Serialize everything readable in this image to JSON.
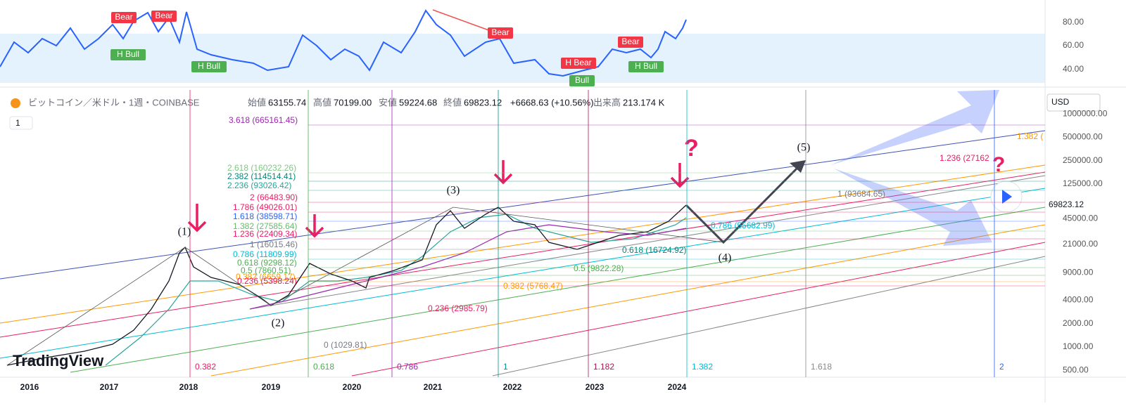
{
  "rsi_panel": {
    "signals": [
      "Bear",
      "Bear",
      "H Bull",
      "H Bull",
      "Bear",
      "H Bear",
      "Bull",
      "Bear",
      "H Bull"
    ],
    "axis_labels": [
      "80.00",
      "60.00",
      "40.00"
    ]
  },
  "header": {
    "symbol": "ビットコイン／米ドル・1週・COINBASE",
    "open_label": "始値",
    "open": "63155.74",
    "high_label": "高値",
    "high": "70199.00",
    "low_label": "安値",
    "low": "59224.68",
    "close_label": "終値",
    "close": "69823.12",
    "change": "+6668.63 (+10.56%)",
    "volume_label": "出来高",
    "volume": "213.174 K"
  },
  "interval": "1",
  "currency": "USD",
  "price_axis": [
    "1000000.00",
    "500000.00",
    "250000.00",
    "125000.00",
    "69823.12",
    "45000.00",
    "21000.00",
    "9000.00",
    "4000.00",
    "2000.00",
    "1000.00",
    "500.00"
  ],
  "time_axis": [
    "2016",
    "2017",
    "2018",
    "2019",
    "2020",
    "2021",
    "2022",
    "2023",
    "2024"
  ],
  "fib_levels": [
    "3.618 (665161.45)",
    "2.618 (160232.26)",
    "2.382 (114514.41)",
    "2.236 (93026.42)",
    "2 (66483.90)",
    "1.786 (49026.01)",
    "1.618 (38598.71)",
    "1.382 (27585.64)",
    "1.236 (22409.34)",
    "1 (16015.46)",
    "0.786 (11809.99)",
    "0.618 (9298.12)",
    "0.5 (7860.51)",
    "0.382 (6659.17)",
    "0.236 (5398.24)",
    "1 (93684.65)",
    "0.786 (55682.99)",
    "0.618 (16724.92)",
    "0.5 (9822.28)",
    "0.382 (5768.47)",
    "0.236 (2985.79)",
    "0 (1029.81)",
    "1.236 (27162",
    "1.382 ("
  ],
  "time_fib": [
    "0.382",
    "0.618",
    "0.786",
    "1",
    "1.182",
    "1.382",
    "1.618",
    "2"
  ],
  "wave_labels": [
    "(1)",
    "(2)",
    "(3)",
    "(4)",
    "(5)"
  ],
  "logo": "TradingView"
}
